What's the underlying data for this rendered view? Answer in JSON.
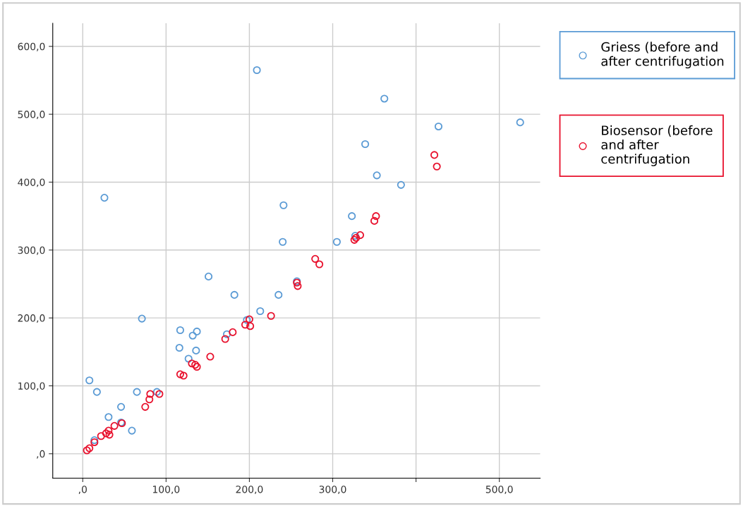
{
  "chart_data": {
    "type": "scatter",
    "xlim": [
      -36,
      549
    ],
    "ylim": [
      -36,
      634
    ],
    "xticks": [
      {
        "value": 0,
        "label": ",0"
      },
      {
        "value": 100,
        "label": "100,0"
      },
      {
        "value": 200,
        "label": "200,0"
      },
      {
        "value": 300,
        "label": "300,0"
      },
      {
        "value": 400,
        "label": null
      },
      {
        "value": 500,
        "label": "500,0"
      }
    ],
    "yticks": [
      {
        "value": 0,
        "label": ",0"
      },
      {
        "value": 100,
        "label": "100,0"
      },
      {
        "value": 200,
        "label": "200,0"
      },
      {
        "value": 300,
        "label": "300,0"
      },
      {
        "value": 400,
        "label": "400,0"
      },
      {
        "value": 500,
        "label": "500,0"
      },
      {
        "value": 600,
        "label": "600,0"
      }
    ],
    "grid": true,
    "legend": "right",
    "marker": "circle",
    "series": [
      {
        "name": "Griess (before and\nafter centrifugation",
        "color": "#5b9bd5",
        "x": [
          209,
          362,
          26,
          427,
          525,
          339,
          353,
          382,
          241,
          323,
          240,
          305,
          327,
          151,
          182,
          235,
          257,
          213,
          71,
          117,
          137,
          132,
          116,
          136,
          127,
          173,
          197,
          8,
          17,
          65,
          31,
          46,
          59,
          89,
          14,
          46
        ],
        "values": [
          565,
          523,
          377,
          482,
          488,
          456,
          410,
          396,
          366,
          350,
          312,
          312,
          321,
          261,
          234,
          234,
          254,
          210,
          199,
          182,
          180,
          174,
          156,
          152,
          140,
          176,
          197,
          108,
          91,
          91,
          54,
          69,
          34,
          91,
          20,
          46
        ]
      },
      {
        "name": "Biosensor (before\nand after\ncentrifugation",
        "color": "#e8112d",
        "x": [
          422,
          425,
          352,
          350,
          333,
          328,
          326,
          279,
          284,
          257,
          258,
          226,
          200,
          201,
          195,
          180,
          171,
          153,
          117,
          121,
          131,
          135,
          137,
          81,
          92,
          80,
          75,
          47,
          38,
          31,
          28,
          32,
          22,
          14,
          8,
          5
        ],
        "values": [
          440,
          423,
          350,
          343,
          322,
          318,
          315,
          287,
          279,
          252,
          247,
          203,
          198,
          188,
          190,
          179,
          169,
          143,
          117,
          115,
          133,
          131,
          128,
          88,
          88,
          80,
          69,
          45,
          41,
          34,
          30,
          28,
          26,
          17,
          8,
          5
        ]
      }
    ]
  }
}
